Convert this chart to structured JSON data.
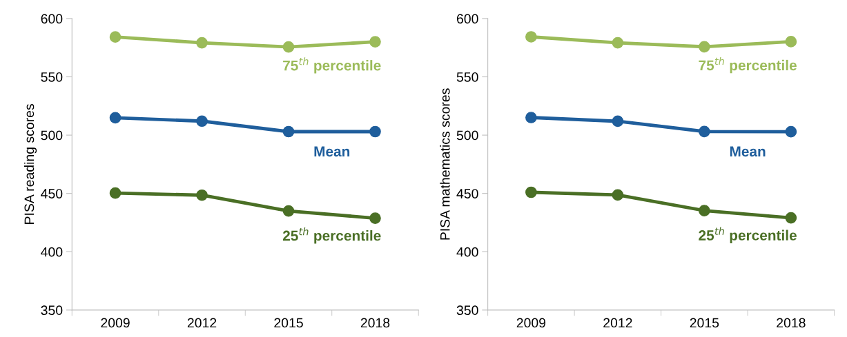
{
  "chart_data": [
    {
      "type": "line",
      "ylabel": "PISA reading scores",
      "categories": [
        "2009",
        "2012",
        "2015",
        "2018"
      ],
      "ylim": [
        350,
        600
      ],
      "yticks": [
        350,
        400,
        450,
        500,
        550,
        600
      ],
      "grid": false,
      "legend": false,
      "marker": "circle",
      "line_style": "solid",
      "series": [
        {
          "name": "75$^{th}$ percentile",
          "color": "#9bbb59",
          "values": [
            584.2,
            579.2,
            575.6,
            580.1
          ]
        },
        {
          "name": "Mean",
          "color": "#1f5e9c",
          "values": [
            514.9,
            512.0,
            503.0,
            503.0
          ]
        },
        {
          "name": "25$^{th}$ percentile",
          "color": "#4a6f25",
          "values": [
            450.3,
            448.5,
            435.0,
            428.8
          ]
        }
      ]
    },
    {
      "type": "line",
      "ylabel": "PISA mathematics scores",
      "categories": [
        "2009",
        "2012",
        "2015",
        "2018"
      ],
      "ylim": [
        350,
        600
      ],
      "yticks": [
        350,
        400,
        450,
        500,
        550,
        600
      ],
      "grid": false,
      "legend": false,
      "marker": "circle",
      "line_style": "solid",
      "series": [
        {
          "name": "75$^{th}$ percentile",
          "color": "#9bbb59",
          "values": [
            584.3,
            579.2,
            575.8,
            580.2
          ]
        },
        {
          "name": "Mean",
          "color": "#1f5e9c",
          "values": [
            515.1,
            511.9,
            503.1,
            502.9
          ]
        },
        {
          "name": "25$^{th}$ percentile",
          "color": "#4a6f25",
          "values": [
            451.0,
            448.7,
            435.3,
            429.1
          ]
        }
      ]
    }
  ]
}
